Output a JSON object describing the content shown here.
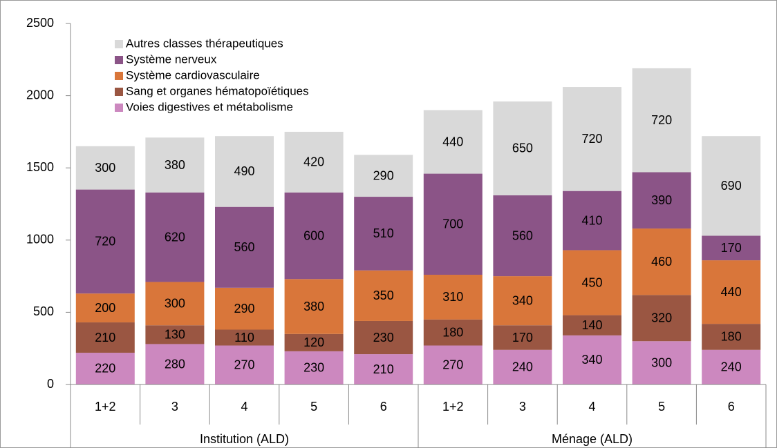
{
  "chart_data": {
    "type": "stacked_bar",
    "categories": [
      "1+2",
      "3",
      "4",
      "5",
      "6",
      "1+2",
      "3",
      "4",
      "5",
      "6"
    ],
    "groups": [
      "Institution (ALD)",
      "Ménage (ALD)"
    ],
    "series": [
      {
        "name": "Voies digestives et métabolisme",
        "color": "#cc88bf",
        "values": [
          220,
          280,
          270,
          230,
          210,
          270,
          240,
          340,
          300,
          240
        ]
      },
      {
        "name": "Sang et organes hématopoïétiques",
        "color": "#9a5642",
        "values": [
          210,
          130,
          110,
          120,
          230,
          180,
          170,
          140,
          320,
          180
        ]
      },
      {
        "name": "Système cardiovasculaire",
        "color": "#d9763a",
        "values": [
          200,
          300,
          290,
          380,
          350,
          310,
          340,
          450,
          460,
          440
        ]
      },
      {
        "name": "Système nerveux",
        "color": "#8b5487",
        "values": [
          720,
          620,
          560,
          600,
          510,
          700,
          560,
          410,
          390,
          170
        ]
      },
      {
        "name": "Autres classes thérapeutiques",
        "color": "#d9d9d9",
        "values": [
          300,
          380,
          490,
          420,
          290,
          440,
          650,
          720,
          720,
          690
        ]
      }
    ],
    "ylim": [
      0,
      2500
    ],
    "yticks": [
      0,
      500,
      1000,
      1500,
      2000,
      2500
    ],
    "grid": false,
    "legend": "top-left"
  }
}
